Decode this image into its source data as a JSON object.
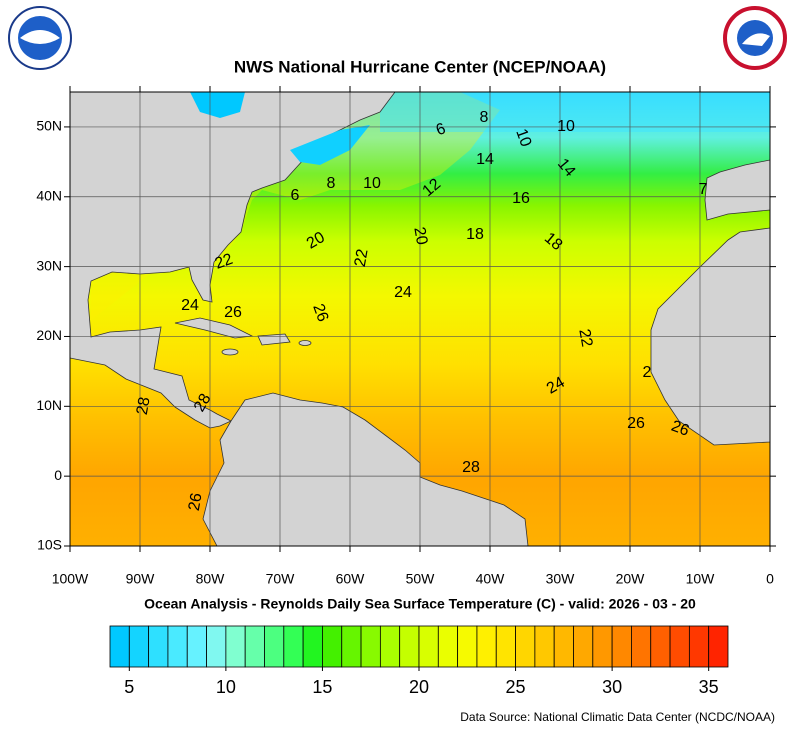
{
  "header": {
    "title": "NWS National Hurricane Center (NCEP/NOAA)"
  },
  "map": {
    "subtitle": "Ocean Analysis - Reynolds Daily Sea Surface Temperature (C) - valid: 2026 - 03 - 20",
    "xlim": [
      -100,
      0
    ],
    "ylim": [
      -10,
      55
    ],
    "xticks": [
      {
        "value": -100,
        "label": "100W"
      },
      {
        "value": -90,
        "label": "90W"
      },
      {
        "value": -80,
        "label": "80W"
      },
      {
        "value": -70,
        "label": "70W"
      },
      {
        "value": -60,
        "label": "60W"
      },
      {
        "value": -50,
        "label": "50W"
      },
      {
        "value": -40,
        "label": "40W"
      },
      {
        "value": -30,
        "label": "30W"
      },
      {
        "value": -20,
        "label": "20W"
      },
      {
        "value": -10,
        "label": "10W"
      },
      0
    ],
    "yticks": [
      {
        "value": -10,
        "label": "10S"
      },
      0,
      {
        "value": 10,
        "label": "10N"
      },
      {
        "value": 20,
        "label": "20N"
      },
      {
        "value": 30,
        "label": "30N"
      },
      {
        "value": 40,
        "label": "40N"
      },
      {
        "value": 50,
        "label": "50N"
      }
    ],
    "grid": true,
    "contour_labels": [
      8,
      6,
      10,
      10,
      14,
      14,
      6,
      8,
      10,
      12,
      16,
      7,
      20,
      20,
      18,
      18,
      22,
      22,
      24,
      24,
      26,
      26,
      22,
      2,
      24,
      28,
      28,
      26,
      26,
      28,
      26
    ]
  },
  "colorbar": {
    "lim": [
      4,
      36
    ],
    "ticks": [
      5,
      10,
      15,
      20,
      25,
      30,
      35
    ],
    "colors": [
      "#00c8ff",
      "#14d4ff",
      "#2ee0ff",
      "#4aeaff",
      "#66f2ff",
      "#80f8f0",
      "#80ffd0",
      "#66ffaa",
      "#4cff80",
      "#33ff55",
      "#22f520",
      "#44f000",
      "#66f500",
      "#88fa00",
      "#aaff00",
      "#c4ff00",
      "#d8ff00",
      "#eaff00",
      "#f6fa00",
      "#fff000",
      "#ffe400",
      "#ffd600",
      "#ffc800",
      "#ffb800",
      "#ffa800",
      "#ff9800",
      "#ff8800",
      "#ff7400",
      "#ff6000",
      "#ff4c00",
      "#ff3800",
      "#ff2400"
    ]
  },
  "footer": {
    "source": "Data Source: National Climatic Data Center (NCDC/NOAA)"
  }
}
